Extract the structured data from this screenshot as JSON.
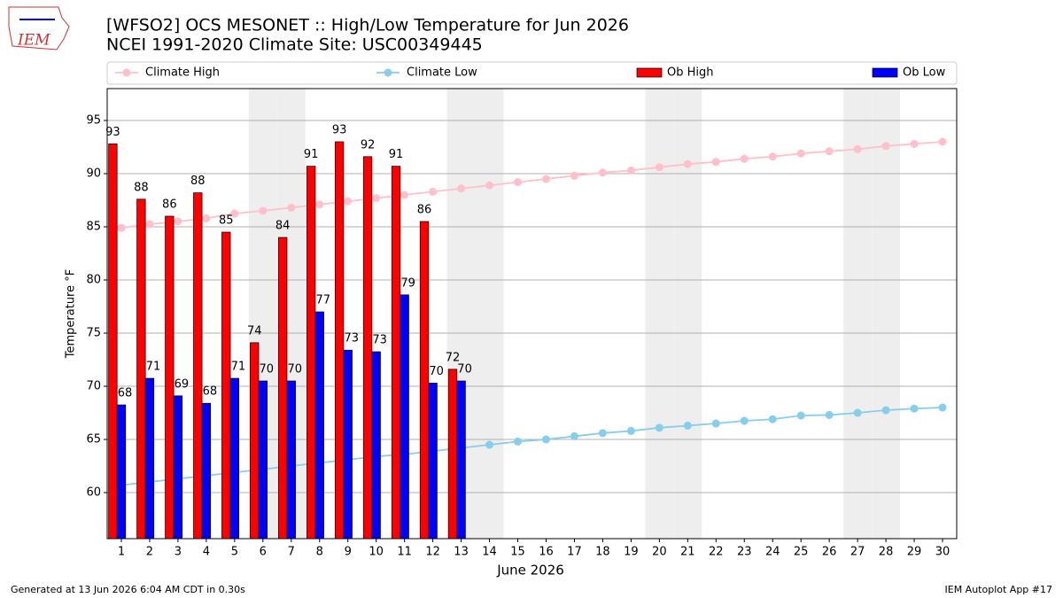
{
  "chart_data": {
    "type": "bar",
    "title": "[WFSO2] OCS MESONET :: High/Low Temperature for Jun 2026",
    "subtitle": "NCEI 1991-2020 Climate Site: USC00349445",
    "xlabel": "June 2026",
    "ylabel": "Temperature °F",
    "footer_left": "Generated at 13 Jun 2026 6:04 AM CDT in 0.30s",
    "footer_right": "IEM Autoplot App #17",
    "logo_text": "IEM",
    "x": [
      1,
      2,
      3,
      4,
      5,
      6,
      7,
      8,
      9,
      10,
      11,
      12,
      13,
      14,
      15,
      16,
      17,
      18,
      19,
      20,
      21,
      22,
      23,
      24,
      25,
      26,
      27,
      28,
      29,
      30
    ],
    "xlim": [
      0.5,
      30.5
    ],
    "xticks": [
      1,
      2,
      3,
      4,
      5,
      6,
      7,
      8,
      9,
      10,
      11,
      12,
      13,
      14,
      15,
      16,
      17,
      18,
      19,
      20,
      21,
      22,
      23,
      24,
      25,
      26,
      27,
      28,
      29,
      30
    ],
    "ylim": [
      55.67,
      98
    ],
    "yticks": [
      60,
      65,
      70,
      75,
      80,
      85,
      90,
      95
    ],
    "grid": true,
    "shaded_days": [
      6,
      7,
      13,
      14,
      20,
      21,
      27,
      28
    ],
    "series": [
      {
        "name": "Climate High",
        "color": "#ffc0cb",
        "kind": "line",
        "values": [
          84.9,
          85.25,
          85.5,
          85.8,
          86.25,
          86.5,
          86.8,
          87.1,
          87.4,
          87.7,
          88.0,
          88.3,
          88.6,
          88.9,
          89.2,
          89.5,
          89.8,
          90.1,
          90.3,
          90.6,
          90.9,
          91.1,
          91.4,
          91.6,
          91.9,
          92.1,
          92.3,
          92.6,
          92.8,
          93.0
        ]
      },
      {
        "name": "Climate Low",
        "color": "#87ceeb",
        "kind": "line",
        "values": [
          60.7,
          61.0,
          61.3,
          61.6,
          61.9,
          62.2,
          62.5,
          62.8,
          63.1,
          63.4,
          63.6,
          63.9,
          64.2,
          64.5,
          64.8,
          65.0,
          65.3,
          65.6,
          65.8,
          66.1,
          66.3,
          66.5,
          66.75,
          66.9,
          67.25,
          67.3,
          67.5,
          67.75,
          67.9,
          68.0
        ]
      },
      {
        "name": "Ob High",
        "color": "#ff0000",
        "kind": "bar",
        "values": [
          92.8,
          87.6,
          86.0,
          88.2,
          84.5,
          74.1,
          84.0,
          90.7,
          93.0,
          91.6,
          90.7,
          85.5,
          71.6,
          null,
          null,
          null,
          null,
          null,
          null,
          null,
          null,
          null,
          null,
          null,
          null,
          null,
          null,
          null,
          null,
          null
        ],
        "value_labels": [
          "93",
          "88",
          "86",
          "88",
          "85",
          "74",
          "84",
          "91",
          "93",
          "92",
          "91",
          "86",
          "72",
          null,
          null,
          null,
          null,
          null,
          null,
          null,
          null,
          null,
          null,
          null,
          null,
          null,
          null,
          null,
          null,
          null
        ]
      },
      {
        "name": "Ob Low",
        "color": "#0000ff",
        "kind": "bar",
        "values": [
          68.25,
          70.75,
          69.1,
          68.4,
          70.75,
          70.5,
          70.5,
          77.0,
          73.4,
          73.25,
          78.6,
          70.3,
          70.5,
          null,
          null,
          null,
          null,
          null,
          null,
          null,
          null,
          null,
          null,
          null,
          null,
          null,
          null,
          null,
          null,
          null
        ],
        "value_labels": [
          "68",
          "71",
          "69",
          "68",
          "71",
          "70",
          "70",
          "77",
          "73",
          "73",
          "79",
          "70",
          "70",
          null,
          null,
          null,
          null,
          null,
          null,
          null,
          null,
          null,
          null,
          null,
          null,
          null,
          null,
          null,
          null,
          null
        ]
      }
    ]
  }
}
